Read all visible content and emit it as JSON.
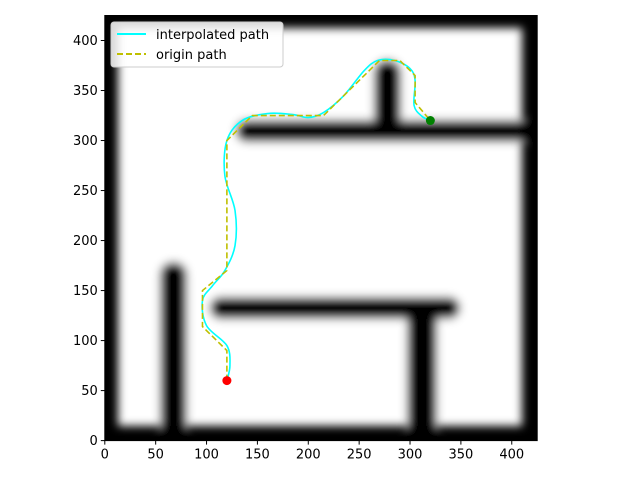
{
  "chart_data": {
    "type": "line",
    "title": "",
    "xlabel": "",
    "ylabel": "",
    "xlim": [
      0,
      425
    ],
    "ylim": [
      0,
      425
    ],
    "xticks": [
      0,
      50,
      100,
      150,
      200,
      250,
      300,
      350,
      400
    ],
    "yticks": [
      0,
      50,
      100,
      150,
      200,
      250,
      300,
      350,
      400
    ],
    "xtick_labels": [
      "0",
      "50",
      "100",
      "150",
      "200",
      "250",
      "300",
      "350",
      "400"
    ],
    "ytick_labels": [
      "0",
      "50",
      "100",
      "150",
      "200",
      "250",
      "300",
      "350",
      "400"
    ],
    "grid": false,
    "legend_position": "top-left",
    "background": "occupancy map (white free space, black walls, blurred edges)",
    "series": [
      {
        "name": "interpolated path",
        "color": "#00ffff",
        "style": "solid",
        "points": [
          [
            120,
            60
          ],
          [
            123,
            75
          ],
          [
            120,
            95
          ],
          [
            100,
            115
          ],
          [
            96,
            140
          ],
          [
            106,
            155
          ],
          [
            118,
            170
          ],
          [
            128,
            195
          ],
          [
            128,
            230
          ],
          [
            118,
            265
          ],
          [
            120,
            300
          ],
          [
            135,
            320
          ],
          [
            160,
            327
          ],
          [
            185,
            326
          ],
          [
            200,
            323
          ],
          [
            215,
            328
          ],
          [
            235,
            345
          ],
          [
            255,
            370
          ],
          [
            268,
            380
          ],
          [
            285,
            380
          ],
          [
            300,
            372
          ],
          [
            305,
            360
          ],
          [
            304,
            335
          ],
          [
            312,
            324
          ],
          [
            320,
            320
          ]
        ]
      },
      {
        "name": "origin path",
        "color": "#bfbf00",
        "style": "dashed",
        "points": [
          [
            120,
            60
          ],
          [
            120,
            90
          ],
          [
            96,
            114
          ],
          [
            96,
            150
          ],
          [
            120,
            170
          ],
          [
            120,
            300
          ],
          [
            145,
            325
          ],
          [
            215,
            325
          ],
          [
            270,
            380
          ],
          [
            290,
            380
          ],
          [
            305,
            365
          ],
          [
            305,
            338
          ],
          [
            320,
            320
          ]
        ]
      }
    ],
    "markers": [
      {
        "label": "start",
        "x": 120,
        "y": 60,
        "color": "#ff0000"
      },
      {
        "label": "goal",
        "x": 320,
        "y": 320,
        "color": "#008000"
      }
    ]
  }
}
